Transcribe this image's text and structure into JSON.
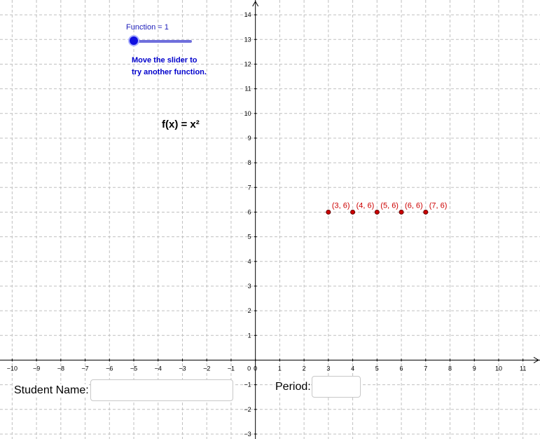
{
  "slider": {
    "label": "Function = 1",
    "value": 1,
    "hint_line1": "Move the slider to",
    "hint_line2": "try another function."
  },
  "function_text": "f(x) = x²",
  "form": {
    "student_name_label": "Student Name:",
    "student_name_value": "",
    "period_label": "Period:",
    "period_value": ""
  },
  "colors": {
    "slider": "#1010e0",
    "points": "#cc0000",
    "hint_text": "#0000cc"
  },
  "chart_data": {
    "type": "scatter",
    "xlim": [
      -10.5,
      11.7
    ],
    "ylim": [
      -3.2,
      14.6
    ],
    "grid": true,
    "x_ticks": [
      -10,
      -9,
      -8,
      -7,
      -6,
      -5,
      -4,
      -3,
      -2,
      -1,
      0,
      1,
      2,
      3,
      4,
      5,
      6,
      7,
      8,
      9,
      10,
      11
    ],
    "y_ticks": [
      -3,
      -2,
      -1,
      1,
      2,
      3,
      4,
      5,
      6,
      7,
      8,
      9,
      10,
      11,
      12,
      13,
      14
    ],
    "points": [
      {
        "x": 3,
        "y": 6,
        "label": "(3, 6)"
      },
      {
        "x": 4,
        "y": 6,
        "label": "(4, 6)"
      },
      {
        "x": 5,
        "y": 6,
        "label": "(5, 6)"
      },
      {
        "x": 6,
        "y": 6,
        "label": "(6, 6)"
      },
      {
        "x": 7,
        "y": 6,
        "label": "(7, 6)"
      }
    ]
  }
}
